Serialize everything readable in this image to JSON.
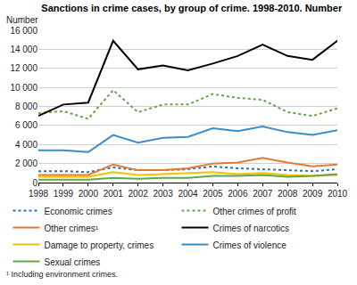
{
  "chart_data": {
    "type": "line",
    "title": "Sanctions in crime cases, by group of crime. 1998-2010. Number",
    "ylabel": "Number",
    "footnote": "¹ Including environment crimes.",
    "categories": [
      "1998",
      "1999",
      "2000",
      "2001",
      "2002",
      "2003",
      "2004",
      "2005",
      "2006",
      "2007",
      "2008",
      "2009",
      "2010"
    ],
    "ylim": [
      0,
      16000
    ],
    "yticks": [
      0,
      {
        "value": 2000,
        "label": "2 000"
      },
      {
        "value": 4000,
        "label": "4 000"
      },
      {
        "value": 6000,
        "label": "6 000"
      },
      {
        "value": 8000,
        "label": "8 000"
      },
      {
        "value": 10000,
        "label": "10 000"
      },
      {
        "value": 12000,
        "label": "12 000"
      },
      {
        "value": 14000,
        "label": "14 000"
      },
      {
        "value": 16000,
        "label": "16 000"
      }
    ],
    "grid": true,
    "legend": "bottom",
    "series": [
      {
        "name": "Economic crimes",
        "color": "#2f6eb5",
        "line_style": "dotted",
        "values": [
          1200,
          1200,
          1100,
          1600,
          1300,
          1300,
          1400,
          1700,
          1500,
          1400,
          1300,
          1200,
          1400
        ]
      },
      {
        "name": "Other crimes of profit",
        "color": "#5fa644",
        "line_style": "dotted",
        "values": [
          7300,
          7500,
          6700,
          9700,
          7400,
          8200,
          8200,
          9300,
          8900,
          8700,
          7400,
          7000,
          7800
        ]
      },
      {
        "name": "Other crimes¹",
        "color": "#e8792c",
        "line_style": "solid",
        "values": [
          800,
          800,
          800,
          1900,
          1300,
          1300,
          1500,
          2000,
          2100,
          2600,
          2100,
          1700,
          1900
        ]
      },
      {
        "name": "Crimes of narcotics",
        "color": "#000000",
        "line_style": "solid",
        "values": [
          7000,
          8200,
          8400,
          14900,
          11900,
          12300,
          11800,
          12500,
          13300,
          14500,
          13300,
          12900,
          14900
        ]
      },
      {
        "name": "Damage to property, crimes",
        "color": "#f2c200",
        "line_style": "solid",
        "values": [
          600,
          600,
          600,
          1100,
          800,
          900,
          1000,
          1100,
          900,
          1000,
          800,
          700,
          800
        ]
      },
      {
        "name": "Crimes of violence",
        "color": "#3a8dc9",
        "line_style": "solid",
        "values": [
          3400,
          3400,
          3200,
          5000,
          4200,
          4700,
          4800,
          5700,
          5400,
          5900,
          5300,
          5000,
          5500
        ]
      },
      {
        "name": "Sexual crimes",
        "color": "#62a844",
        "line_style": "solid",
        "values": [
          300,
          300,
          300,
          500,
          400,
          500,
          500,
          700,
          700,
          800,
          600,
          700,
          900
        ]
      }
    ]
  }
}
